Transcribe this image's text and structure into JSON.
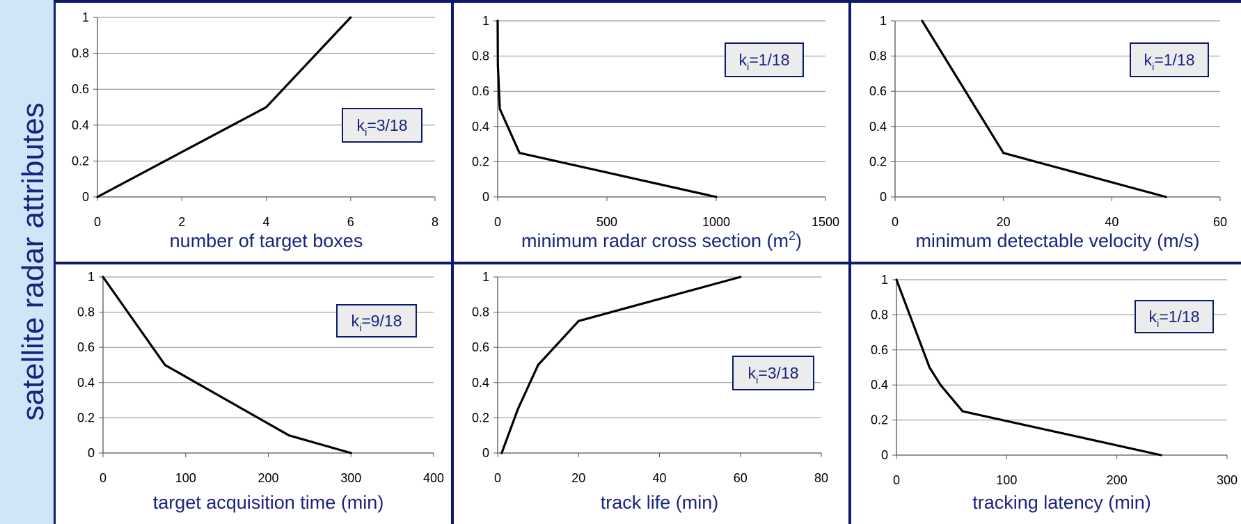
{
  "sidebar": {
    "title": "satellite radar attributes"
  },
  "colors": {
    "frame": "#0d1a6b",
    "text": "#1a237e",
    "line": "#000000",
    "grid": "#8a8a8a",
    "kbox_fill": "#ececec",
    "sidebar_bg": "#cfe6f8"
  },
  "chart_data": [
    {
      "type": "line",
      "xlabel": "number of target boxes",
      "k_base": "k",
      "k_sub": "i",
      "k_value": "=3/18",
      "xlim": [
        0,
        8
      ],
      "ylim": [
        0,
        1
      ],
      "xticks": [
        "0",
        "2",
        "4",
        "6",
        "8"
      ],
      "yticks": [
        "0",
        "0.2",
        "0.4",
        "0.6",
        "0.8",
        "1"
      ],
      "grid": true,
      "series": [
        {
          "x": [
            0,
            4,
            6
          ],
          "y": [
            0,
            0.5,
            1
          ]
        }
      ]
    },
    {
      "type": "line",
      "xlabel": "minimum radar cross section (m",
      "xlabel_sup": "2",
      "xlabel_end": ")",
      "k_base": "k",
      "k_sub": "i",
      "k_value": "=1/18",
      "xlim": [
        0,
        1500
      ],
      "ylim": [
        0,
        1
      ],
      "xticks": [
        "0",
        "500",
        "1000",
        "1500"
      ],
      "yticks": [
        "0",
        "0.2",
        "0.4",
        "0.6",
        "0.8",
        "1"
      ],
      "grid": true,
      "series": [
        {
          "x": [
            0,
            1,
            10,
            100,
            1000
          ],
          "y": [
            1,
            0.75,
            0.5,
            0.25,
            0
          ]
        }
      ]
    },
    {
      "type": "line",
      "xlabel": "minimum detectable velocity (m/s)",
      "k_base": "k",
      "k_sub": "i",
      "k_value": "=1/18",
      "xlim": [
        0,
        60
      ],
      "ylim": [
        0,
        1
      ],
      "xticks": [
        "0",
        "20",
        "40",
        "60"
      ],
      "yticks": [
        "0",
        "0.2",
        "0.4",
        "0.6",
        "0.8",
        "1"
      ],
      "grid": true,
      "series": [
        {
          "x": [
            5,
            20,
            50
          ],
          "y": [
            1,
            0.25,
            0
          ]
        }
      ]
    },
    {
      "type": "line",
      "xlabel": "target acquisition time (min)",
      "k_base": "k",
      "k_sub": "i",
      "k_value": "=9/18",
      "xlim": [
        0,
        400
      ],
      "ylim": [
        0,
        1
      ],
      "xticks": [
        "0",
        "100",
        "200",
        "300",
        "400"
      ],
      "yticks": [
        "0",
        "0.2",
        "0.4",
        "0.6",
        "0.8",
        "1"
      ],
      "grid": true,
      "series": [
        {
          "x": [
            0,
            75,
            225,
            300
          ],
          "y": [
            1,
            0.5,
            0.1,
            0
          ]
        }
      ]
    },
    {
      "type": "line",
      "xlabel": "track life (min)",
      "k_base": "k",
      "k_sub": "i",
      "k_value": "=3/18",
      "xlim": [
        0,
        80
      ],
      "ylim": [
        0,
        1
      ],
      "xticks": [
        "0",
        "20",
        "40",
        "60",
        "80"
      ],
      "yticks": [
        "0",
        "0.2",
        "0.4",
        "0.6",
        "0.8",
        "1"
      ],
      "grid": true,
      "series": [
        {
          "x": [
            1,
            5,
            10,
            20,
            60
          ],
          "y": [
            0,
            0.25,
            0.5,
            0.75,
            1
          ]
        }
      ]
    },
    {
      "type": "line",
      "xlabel": "tracking latency (min)",
      "k_base": "k",
      "k_sub": "i",
      "k_value": "=1/18",
      "xlim": [
        0,
        300
      ],
      "ylim": [
        0,
        1
      ],
      "xticks": [
        "0",
        "100",
        "200",
        "300"
      ],
      "yticks": [
        "0",
        "0.2",
        "0.4",
        "0.6",
        "0.8",
        "1"
      ],
      "grid": true,
      "series": [
        {
          "x": [
            0,
            30,
            40,
            60,
            240
          ],
          "y": [
            1,
            0.5,
            0.4,
            0.25,
            0
          ]
        }
      ]
    }
  ]
}
